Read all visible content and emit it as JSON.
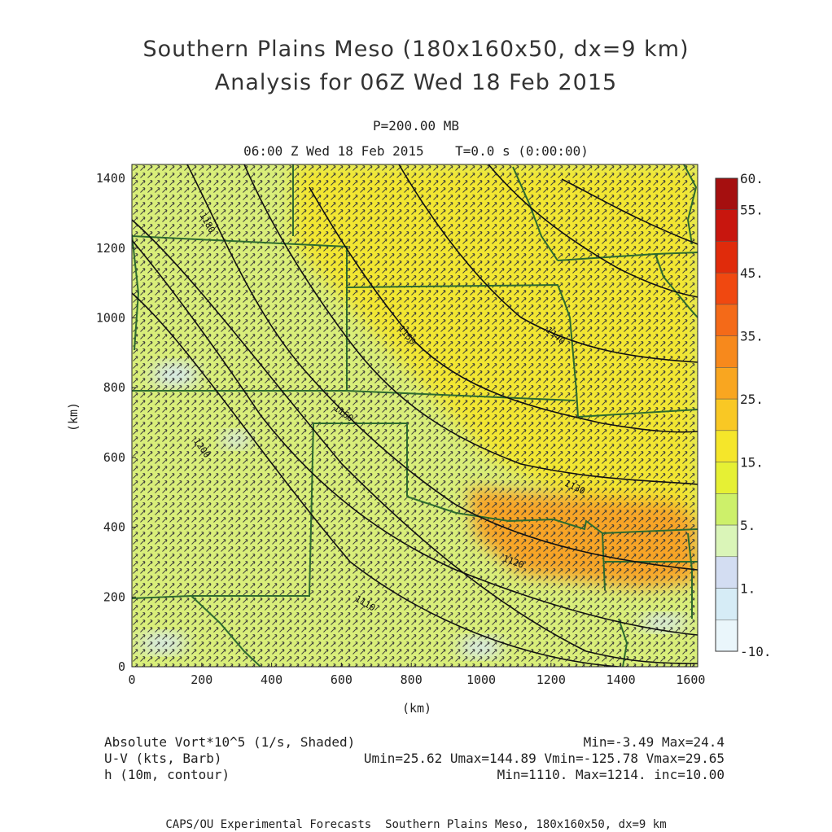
{
  "title": {
    "line1": "Southern Plains Meso (180x160x50, dx=9 km)",
    "line2": "Analysis for 06Z Wed 18 Feb 2015"
  },
  "subtitle": {
    "level": "P=200.00 MB",
    "time": "06:00 Z Wed 18 Feb 2015    T=0.0 s (0:00:00)"
  },
  "axes": {
    "xlabel": "(km)",
    "ylabel": "(km)",
    "x_ticks": [
      "0",
      "200",
      "400",
      "600",
      "800",
      "1000",
      "1200",
      "1400",
      "1600"
    ],
    "y_ticks": [
      "0",
      "200",
      "400",
      "600",
      "800",
      "1000",
      "1200",
      "1400"
    ],
    "x_range": [
      0,
      1620
    ],
    "y_range": [
      0,
      1440
    ]
  },
  "colorbar": {
    "labels": [
      "60.",
      "55.",
      "45.",
      "35.",
      "25.",
      "15.",
      "5.",
      "1.",
      "-10."
    ],
    "bins": [
      {
        "color": "#a50f0f"
      },
      {
        "color": "#c8160e"
      },
      {
        "color": "#e02b0b"
      },
      {
        "color": "#f04810"
      },
      {
        "color": "#f46a18"
      },
      {
        "color": "#f7891c"
      },
      {
        "color": "#f9a620"
      },
      {
        "color": "#f9c824"
      },
      {
        "color": "#f5e62a"
      },
      {
        "color": "#e6f034"
      },
      {
        "color": "#cdf06a"
      },
      {
        "color": "#daf5b8"
      },
      {
        "color": "#d3ddf2"
      },
      {
        "color": "#d6ecf6"
      },
      {
        "color": "#eaf6fb"
      }
    ]
  },
  "contour_labels": [
    "1180",
    "1200",
    "1160",
    "1150",
    "1140",
    "1130",
    "1120",
    "1110"
  ],
  "footer": {
    "field1": "Absolute Vort*10^5 (1/s, Shaded)",
    "stats1": "Min=-3.49 Max=24.4",
    "field2": "U-V (kts, Barb)",
    "stats2": "Umin=25.62 Umax=144.89 Vmin=-125.78 Vmax=29.65",
    "field3": "h (10m, contour)",
    "stats3": "Min=1110. Max=1214. inc=10.00",
    "credit": "CAPS/OU Experimental Forecasts  Southern Plains Meso, 180x160x50, dx=9 km"
  },
  "style": {
    "field_base": "#d9ee7a",
    "field_high": "#f2e632",
    "field_max": "#f7a428",
    "field_low": "#d6e8f4",
    "barb_color": "#3a3a3a",
    "border_color": "#2e6b2e",
    "contour_color": "#111111"
  }
}
